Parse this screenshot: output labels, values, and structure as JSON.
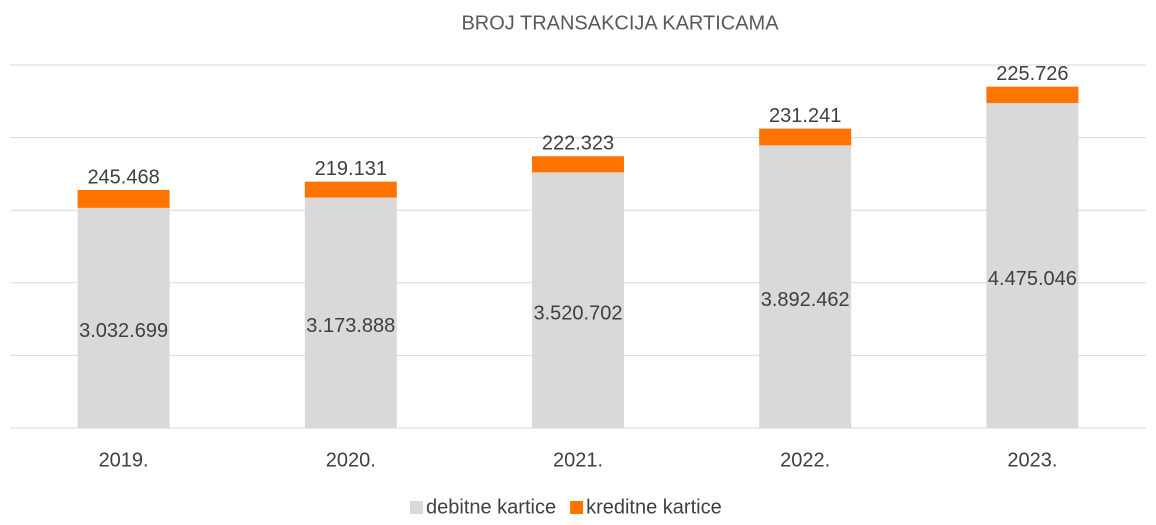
{
  "chart_data": {
    "type": "stacked_bar",
    "title": "BROJ TRANSAKCIJA KARTICAMA",
    "categories": [
      "2019.",
      "2020.",
      "2021.",
      "2022.",
      "2023."
    ],
    "series": [
      {
        "name": "debitne kartice",
        "color": "#d9d9d9",
        "values": [
          3032699,
          3173888,
          3520702,
          3892462,
          4475046
        ],
        "value_labels": [
          "3.032.699",
          "3.173.888",
          "3.520.702",
          "3.892.462",
          "4.475.046"
        ]
      },
      {
        "name": "kreditne kartice",
        "color": "#ff7300",
        "values": [
          245468,
          219131,
          222323,
          231241,
          225726
        ],
        "value_labels": [
          "245.468",
          "219.131",
          "222.323",
          "231.241",
          "225.726"
        ]
      }
    ],
    "ylim": [
      0,
      5000000
    ],
    "yticks": [
      0,
      1000000,
      2000000,
      3000000,
      4000000,
      5000000
    ],
    "grid": true,
    "legend": "bottom"
  }
}
